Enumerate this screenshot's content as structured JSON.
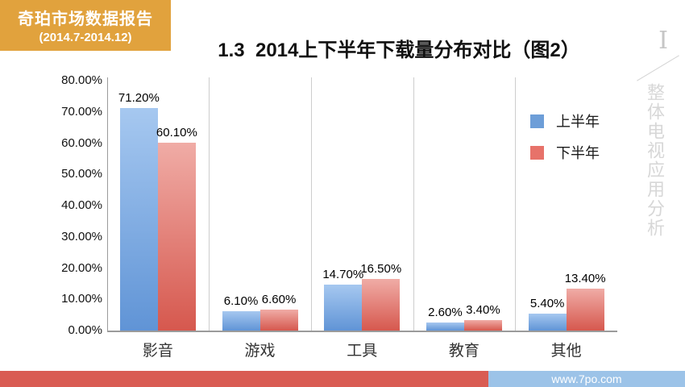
{
  "badge": {
    "title": "奇珀市场数据报告",
    "subtitle": "(2014.7-2014.12)",
    "bg_color": "#E1A23D"
  },
  "header": {
    "title": "1.3  2014上下半年下载量分布对比（图2）"
  },
  "sidebar": {
    "numeral": "I",
    "vertical_text": "整体电视应用分析"
  },
  "footer": {
    "url": "www.7po.com",
    "red_color": "#D95C53",
    "blue_color": "#9CC3E8"
  },
  "chart_data": {
    "type": "bar",
    "title": "1.3 2014上下半年下载量分布对比（图2）",
    "categories": [
      "影音",
      "游戏",
      "工具",
      "教育",
      "其他"
    ],
    "series": [
      {
        "name": "上半年",
        "legend_color": "#6D9ED8",
        "color_top": "#A6C8F0",
        "color_bottom": "#6094D6",
        "values": [
          71.2,
          6.1,
          14.7,
          2.6,
          5.4
        ],
        "labels": [
          "71.20%",
          "6.10%",
          "14.70%",
          "2.60%",
          "5.40%"
        ]
      },
      {
        "name": "下半年",
        "legend_color": "#E7726A",
        "color_top": "#F0ACA6",
        "color_bottom": "#D6584E",
        "values": [
          60.1,
          6.6,
          16.5,
          3.4,
          13.4
        ],
        "labels": [
          "60.10%",
          "6.60%",
          "16.50%",
          "3.40%",
          "13.40%"
        ]
      }
    ],
    "ylim": [
      0,
      80
    ],
    "ytick_step": 10,
    "ytick_labels": [
      "0.00%",
      "10.00%",
      "20.00%",
      "30.00%",
      "40.00%",
      "50.00%",
      "60.00%",
      "70.00%",
      "80.00%"
    ],
    "grid": "vertical category separators only",
    "legend_position": "right"
  }
}
